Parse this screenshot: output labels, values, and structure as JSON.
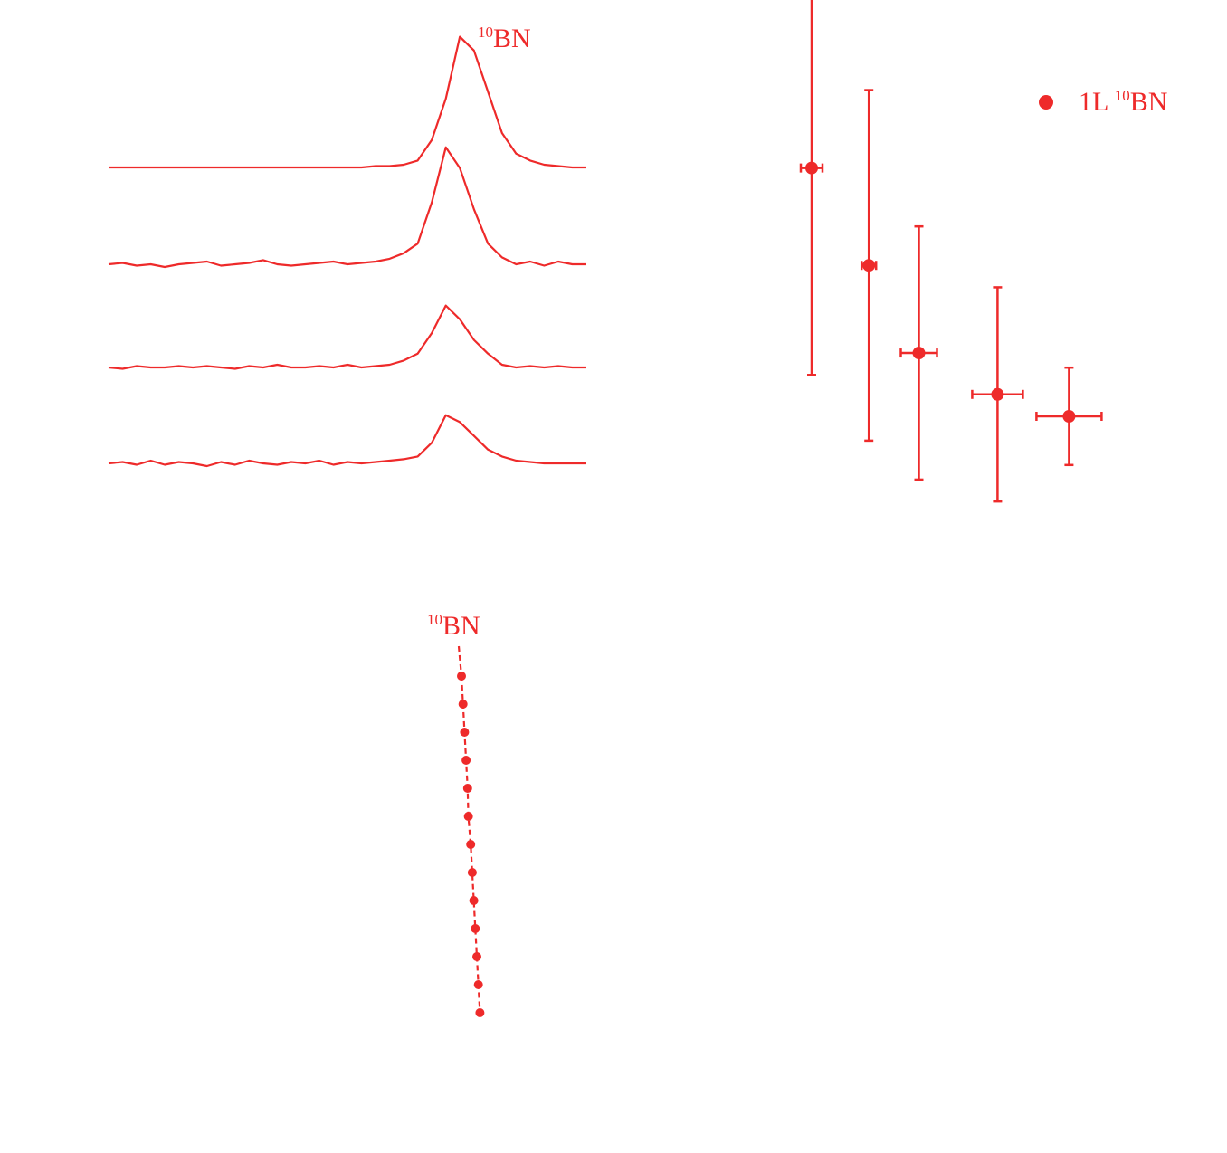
{
  "colors": {
    "accent": "#ee2a2a",
    "background": "#ffffff"
  },
  "chart_data": [
    {
      "type": "line",
      "panel": "spectra",
      "annotation": {
        "superscript": "10",
        "text": "BN"
      },
      "series": [
        {
          "values": [
            0.0,
            0.0,
            0.0,
            0.0,
            0.0,
            0.0,
            0.0,
            0.0,
            0.0,
            0.0,
            0.0,
            0.0,
            0.0,
            0.0,
            0.0,
            0.0,
            0.0,
            0.0,
            0.0,
            0.01,
            0.01,
            0.02,
            0.05,
            0.2,
            0.5,
            0.95,
            0.85,
            0.55,
            0.25,
            0.1,
            0.05,
            0.02,
            0.01,
            0.0,
            0.0
          ]
        },
        {
          "values": [
            0.0,
            0.01,
            -0.01,
            0.0,
            -0.02,
            0.0,
            0.01,
            0.02,
            -0.01,
            0.0,
            0.01,
            0.03,
            0.0,
            -0.01,
            0.0,
            0.01,
            0.02,
            0.0,
            0.01,
            0.02,
            0.04,
            0.08,
            0.15,
            0.45,
            0.85,
            0.7,
            0.4,
            0.15,
            0.05,
            0.0,
            0.02,
            -0.01,
            0.02,
            0.0,
            0.0
          ]
        },
        {
          "values": [
            0.0,
            -0.01,
            0.01,
            0.0,
            0.0,
            0.01,
            0.0,
            0.01,
            0.0,
            -0.01,
            0.01,
            0.0,
            0.02,
            0.0,
            0.0,
            0.01,
            0.0,
            0.02,
            0.0,
            0.01,
            0.02,
            0.05,
            0.1,
            0.25,
            0.45,
            0.35,
            0.2,
            0.1,
            0.02,
            0.0,
            0.01,
            0.0,
            0.01,
            0.0,
            0.0
          ]
        },
        {
          "values": [
            0.0,
            0.01,
            -0.01,
            0.02,
            -0.01,
            0.01,
            0.0,
            -0.02,
            0.01,
            -0.01,
            0.02,
            0.0,
            -0.01,
            0.01,
            0.0,
            0.02,
            -0.01,
            0.01,
            0.0,
            0.01,
            0.02,
            0.03,
            0.05,
            0.15,
            0.35,
            0.3,
            0.2,
            0.1,
            0.05,
            0.02,
            0.01,
            0.0,
            0.0,
            0.0,
            0.0
          ]
        }
      ]
    },
    {
      "type": "scatter",
      "panel": "decay",
      "legend": {
        "position": "top-right",
        "label_prefix": "1L ",
        "superscript": "10",
        "label_suffix": "BN"
      },
      "points": [
        {
          "x": 1.0,
          "y": 1.0,
          "xerr": 0.3,
          "yerr": 0.85
        },
        {
          "x": 1.8,
          "y": 0.6,
          "xerr": 0.2,
          "yerr": 0.72
        },
        {
          "x": 2.5,
          "y": 0.24,
          "xerr": 0.5,
          "yerr": 0.52
        },
        {
          "x": 3.6,
          "y": 0.07,
          "xerr": 0.7,
          "yerr": 0.44
        },
        {
          "x": 4.6,
          "y": -0.02,
          "xerr": 0.9,
          "yerr": 0.2
        }
      ]
    },
    {
      "type": "line",
      "panel": "peak-position",
      "annotation": {
        "superscript": "10",
        "text": "BN"
      },
      "x": [
        0.0,
        0.1,
        0.2,
        0.3,
        0.4,
        0.45,
        0.6,
        0.7,
        0.8,
        0.9,
        1.0,
        1.1,
        1.2
      ],
      "y": [
        1,
        2,
        3,
        4,
        5,
        6,
        7,
        8,
        9,
        10,
        11,
        12,
        13
      ]
    }
  ]
}
